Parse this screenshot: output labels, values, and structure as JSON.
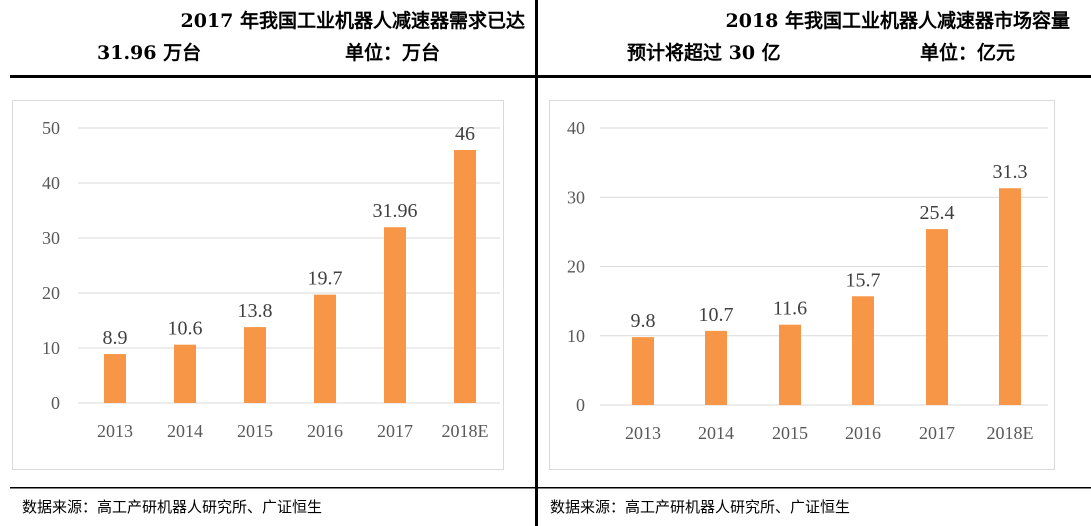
{
  "panels": [
    {
      "title_line1": "2017 年我国工业机器人减速器需求已达",
      "title_line2": "31.96 万台",
      "unit": "单位：万台",
      "source": "数据来源：高工产研机器人研究所、广证恒生"
    },
    {
      "title_line1": "2018  年我国工业机器人减速器市场容量",
      "title_line2": "预计将超过 30 亿",
      "unit": "单位：亿元",
      "source": "数据来源：高工产研机器人研究所、广证恒生"
    }
  ],
  "chart_data": [
    {
      "type": "bar",
      "categories": [
        "2013",
        "2014",
        "2015",
        "2016",
        "2017",
        "2018E"
      ],
      "values": [
        8.9,
        10.6,
        13.8,
        19.7,
        31.96,
        46
      ],
      "data_labels": [
        "8.9",
        "10.6",
        "13.8",
        "19.7",
        "31.96",
        "46"
      ],
      "yticks": [
        "0",
        "10",
        "20",
        "30",
        "40",
        "50"
      ],
      "ylim": [
        0,
        50
      ],
      "grid": true,
      "bar_color": "#F79646"
    },
    {
      "type": "bar",
      "categories": [
        "2013",
        "2014",
        "2015",
        "2016",
        "2017",
        "2018E"
      ],
      "values": [
        9.8,
        10.7,
        11.6,
        15.7,
        25.4,
        31.3
      ],
      "data_labels": [
        "9.8",
        "10.7",
        "11.6",
        "15.7",
        "25.4",
        "31.3"
      ],
      "yticks": [
        "0",
        "10",
        "20",
        "30",
        "40"
      ],
      "ylim": [
        0,
        40
      ],
      "grid": true,
      "bar_color": "#F79646"
    }
  ]
}
